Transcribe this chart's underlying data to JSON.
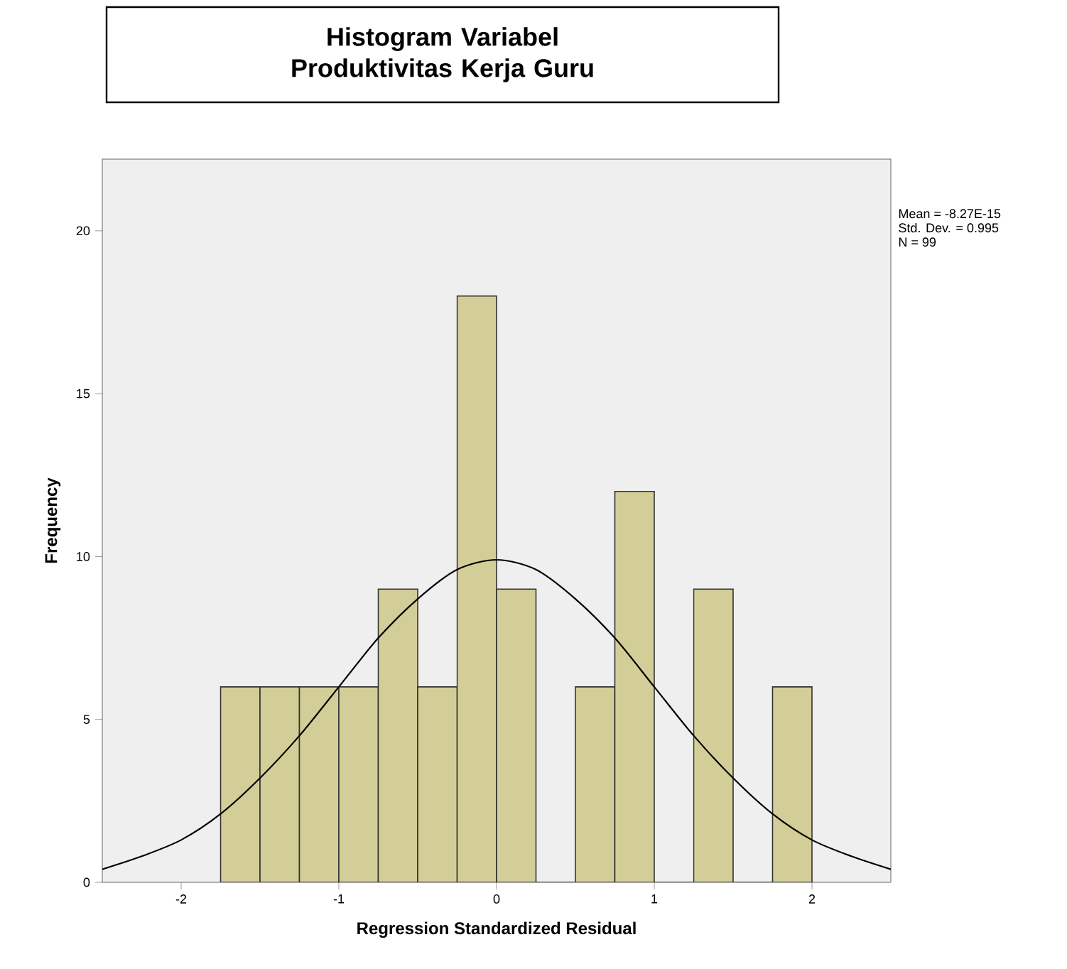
{
  "chart_data": {
    "type": "histogram",
    "title": "Histogram Variabel Produktivitas Kerja Guru",
    "xlabel": "Regression Standardized Residual",
    "ylabel": "Frequency",
    "bins": [
      -1.75,
      -1.5,
      -1.25,
      -1.0,
      -0.75,
      -0.5,
      -0.25,
      0.0,
      0.25,
      0.5,
      0.75,
      1.0,
      1.25,
      1.5,
      1.75,
      2.0
    ],
    "values": [
      6,
      6,
      6,
      6,
      9,
      6,
      18,
      9,
      0,
      6,
      12,
      0,
      9,
      0,
      6
    ],
    "color": "#d3ce97",
    "series": [
      {
        "type": "line",
        "color": "#000000",
        "x": [
          -2.5,
          -2.25,
          -2.0,
          -1.75,
          -1.5,
          -1.25,
          -1.0,
          -0.75,
          -0.5,
          -0.25,
          0.0,
          0.25,
          0.5,
          0.75,
          1.0,
          1.25,
          1.5,
          1.75,
          2.0,
          2.25,
          2.5
        ],
        "values": [
          0.4,
          0.8,
          1.3,
          2.1,
          3.2,
          4.5,
          6.0,
          7.5,
          8.7,
          9.6,
          9.9,
          9.6,
          8.7,
          7.5,
          6.0,
          4.5,
          3.2,
          2.1,
          1.3,
          0.8,
          0.4
        ]
      }
    ],
    "xlim": [
      -2.5,
      2.5
    ],
    "ylim": [
      0,
      22.2
    ],
    "xticks": [
      -2,
      -1,
      0,
      1,
      2
    ],
    "yticks": [
      0,
      5,
      10,
      15,
      20
    ],
    "grid": false,
    "annotations": [
      "Mean = -8.27E-15",
      "Std. Dev. = 0.995",
      "N = 99"
    ]
  }
}
